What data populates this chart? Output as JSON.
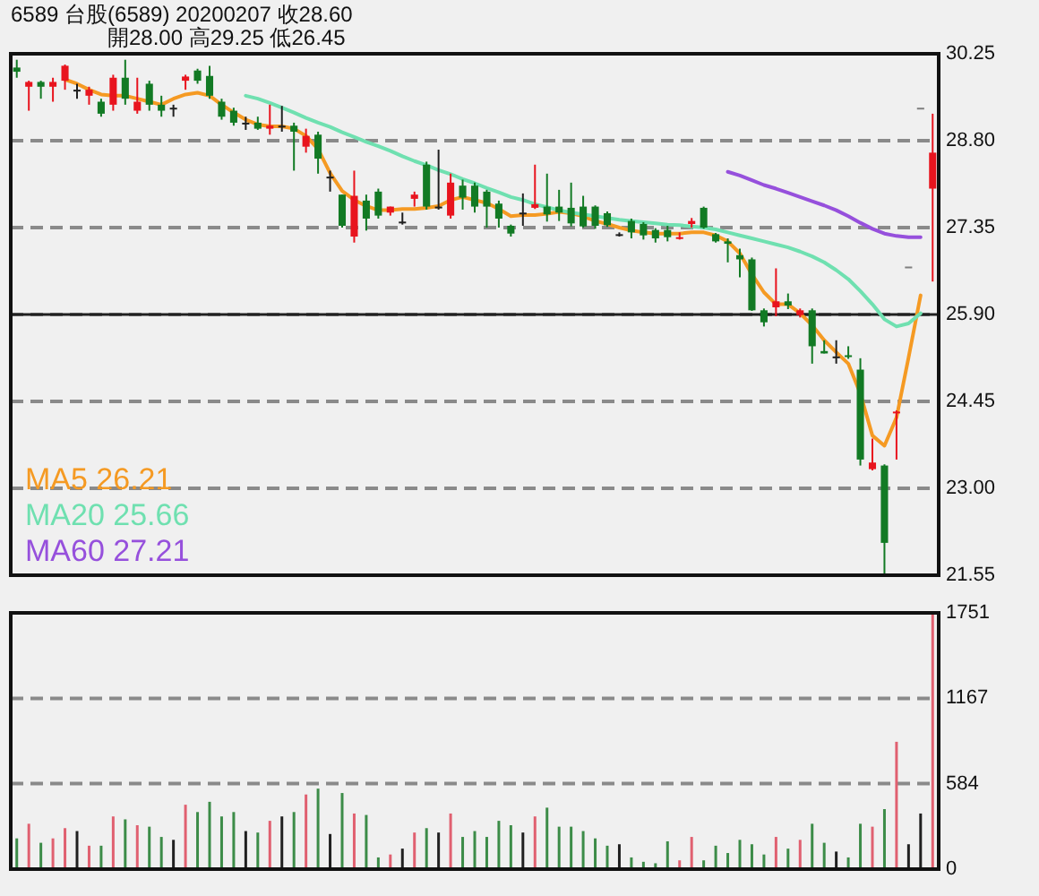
{
  "chart_data": [
    {
      "type": "candlestick",
      "title": "6589 台股(6589) 20200207 收28.60",
      "subtitle": "開28.00 高29.25 低26.45",
      "categories": [
        null,
        null,
        null,
        null,
        null,
        null,
        null,
        null,
        null,
        null,
        null,
        null,
        null,
        null,
        null,
        null,
        null,
        null,
        null,
        null,
        null,
        null,
        null,
        null,
        null,
        null,
        null,
        null,
        null,
        null,
        null,
        null,
        null,
        null,
        null,
        null,
        null,
        null,
        null,
        null,
        null,
        null,
        null,
        null,
        null,
        null,
        null,
        null,
        null,
        null,
        null,
        null,
        null,
        null,
        null,
        null,
        null,
        null,
        null,
        null,
        null,
        null,
        null,
        null,
        null,
        null,
        null,
        null,
        null,
        null,
        null,
        null,
        null,
        null,
        null,
        null,
        null
      ],
      "ohlc": [
        [
          30.02,
          30.15,
          29.85,
          29.95
        ],
        [
          29.7,
          29.8,
          29.3,
          29.78
        ],
        [
          29.78,
          29.8,
          29.5,
          29.7
        ],
        [
          29.7,
          29.85,
          29.45,
          29.78
        ],
        [
          29.8,
          30.07,
          29.65,
          30.05
        ],
        [
          29.65,
          29.75,
          29.5,
          29.65
        ],
        [
          29.55,
          29.7,
          29.4,
          29.65
        ],
        [
          29.45,
          29.5,
          29.2,
          29.25
        ],
        [
          29.4,
          29.9,
          29.3,
          29.85
        ],
        [
          29.85,
          30.15,
          29.4,
          29.5
        ],
        [
          29.3,
          29.85,
          29.25,
          29.45
        ],
        [
          29.75,
          29.8,
          29.3,
          29.4
        ],
        [
          29.4,
          29.55,
          29.2,
          29.3
        ],
        [
          29.35,
          29.4,
          29.2,
          29.35
        ],
        [
          29.8,
          29.9,
          29.65,
          29.87
        ],
        [
          29.97,
          30.0,
          29.75,
          29.8
        ],
        [
          29.88,
          30.05,
          29.5,
          29.55
        ],
        [
          29.45,
          29.5,
          29.15,
          29.2
        ],
        [
          29.3,
          29.35,
          29.05,
          29.1
        ],
        [
          29.1,
          29.2,
          28.98,
          29.1
        ],
        [
          29.1,
          29.2,
          28.98,
          29.0
        ],
        [
          29.0,
          29.4,
          28.9,
          29.05
        ],
        [
          29.05,
          29.38,
          28.95,
          29.05
        ],
        [
          29.05,
          29.1,
          28.3,
          28.95
        ],
        [
          28.7,
          29.0,
          28.6,
          28.88
        ],
        [
          28.9,
          28.95,
          28.25,
          28.5
        ],
        [
          28.2,
          28.3,
          27.95,
          28.2
        ],
        [
          27.9,
          27.9,
          27.35,
          27.38
        ],
        [
          27.2,
          28.3,
          27.1,
          27.88
        ],
        [
          27.8,
          27.9,
          27.3,
          27.5
        ],
        [
          27.95,
          28.0,
          27.5,
          27.55
        ],
        [
          27.6,
          27.7,
          27.55,
          27.7
        ],
        [
          27.45,
          27.6,
          27.4,
          27.45
        ],
        [
          27.83,
          27.95,
          27.7,
          27.9
        ],
        [
          28.4,
          28.45,
          27.65,
          27.7
        ],
        [
          27.7,
          28.65,
          27.65,
          27.7
        ],
        [
          27.55,
          28.25,
          27.5,
          28.1
        ],
        [
          28.05,
          28.15,
          27.65,
          27.85
        ],
        [
          28.05,
          28.1,
          27.6,
          27.7
        ],
        [
          27.95,
          27.98,
          27.35,
          27.7
        ],
        [
          27.75,
          27.8,
          27.35,
          27.5
        ],
        [
          27.38,
          27.4,
          27.2,
          27.25
        ],
        [
          27.6,
          27.92,
          27.38,
          27.6
        ],
        [
          27.68,
          28.4,
          27.66,
          27.74
        ],
        [
          27.7,
          28.25,
          27.45,
          27.57
        ],
        [
          27.7,
          27.98,
          27.46,
          27.6
        ],
        [
          27.68,
          28.1,
          27.37,
          27.42
        ],
        [
          27.7,
          27.88,
          27.35,
          27.37
        ],
        [
          27.7,
          27.72,
          27.33,
          27.38
        ],
        [
          27.59,
          27.62,
          27.36,
          27.39
        ],
        [
          27.24,
          27.27,
          27.2,
          27.24
        ],
        [
          27.46,
          27.5,
          27.17,
          27.27
        ],
        [
          27.41,
          27.44,
          27.15,
          27.22
        ],
        [
          27.31,
          27.34,
          27.1,
          27.17
        ],
        [
          27.31,
          27.38,
          27.12,
          27.19
        ],
        [
          27.17,
          27.27,
          27.15,
          27.19
        ],
        [
          27.41,
          27.51,
          27.35,
          27.46
        ],
        [
          27.68,
          27.7,
          27.33,
          27.35
        ],
        [
          27.24,
          27.26,
          27.1,
          27.12
        ],
        [
          27.12,
          27.17,
          26.77,
          27.08
        ],
        [
          26.89,
          27.0,
          26.52,
          26.82
        ],
        [
          26.82,
          26.85,
          25.96,
          25.97
        ],
        [
          25.97,
          26.0,
          25.7,
          25.77
        ],
        [
          26.02,
          26.67,
          25.87,
          26.12
        ],
        [
          26.12,
          26.25,
          25.99,
          26.05
        ],
        [
          25.89,
          26.0,
          25.85,
          25.97
        ],
        [
          25.97,
          26.0,
          25.08,
          25.37
        ],
        [
          25.29,
          25.47,
          25.25,
          25.25
        ],
        [
          25.2,
          25.47,
          25.08,
          25.2
        ],
        [
          25.22,
          25.37,
          25.16,
          25.19
        ],
        [
          24.98,
          25.17,
          23.38,
          23.48
        ],
        [
          23.32,
          23.83,
          23.3,
          23.43
        ],
        [
          23.38,
          23.4,
          21.55,
          22.09
        ],
        [
          24.25,
          24.3,
          23.48,
          24.28
        ],
        [
          26.7,
          26.7,
          26.7,
          26.7
        ],
        [
          29.35,
          29.35,
          29.35,
          29.35
        ],
        [
          28.0,
          29.25,
          26.45,
          28.6
        ]
      ],
      "colors": [
        "#127a24",
        "#e8141e",
        "#127a24",
        "#e8141e",
        "#e8141e",
        "#202020",
        "#e8141e",
        "#127a24",
        "#e8141e",
        "#127a24",
        "#e8141e",
        "#127a24",
        "#127a24",
        "#202020",
        "#e8141e",
        "#127a24",
        "#127a24",
        "#127a24",
        "#127a24",
        "#202020",
        "#127a24",
        "#e8141e",
        "#202020",
        "#127a24",
        "#e8141e",
        "#127a24",
        "#202020",
        "#127a24",
        "#e8141e",
        "#127a24",
        "#127a24",
        "#e8141e",
        "#202020",
        "#e8141e",
        "#127a24",
        "#202020",
        "#e8141e",
        "#127a24",
        "#127a24",
        "#127a24",
        "#127a24",
        "#127a24",
        "#202020",
        "#e8141e",
        "#127a24",
        "#127a24",
        "#127a24",
        "#127a24",
        "#127a24",
        "#127a24",
        "#202020",
        "#127a24",
        "#127a24",
        "#127a24",
        "#127a24",
        "#e8141e",
        "#e8141e",
        "#127a24",
        "#127a24",
        "#127a24",
        "#127a24",
        "#127a24",
        "#127a24",
        "#e8141e",
        "#127a24",
        "#e8141e",
        "#127a24",
        "#127a24",
        "#202020",
        "#127a24",
        "#127a24",
        "#e8141e",
        "#127a24",
        "#e8141e",
        "#808080",
        "#808080",
        "#e8141e"
      ],
      "series": [
        {
          "type": "line",
          "name": "MA5 26.21",
          "color": "#f59a23",
          "values": [
            null,
            null,
            null,
            null,
            29.82,
            29.75,
            29.65,
            29.57,
            29.55,
            29.55,
            29.5,
            29.45,
            29.4,
            29.5,
            29.57,
            29.6,
            29.55,
            29.4,
            29.27,
            29.15,
            29.07,
            29.04,
            29.04,
            29.0,
            28.88,
            28.66,
            28.26,
            27.96,
            27.81,
            27.71,
            27.64,
            27.64,
            27.66,
            27.66,
            27.68,
            27.71,
            27.81,
            27.86,
            27.81,
            27.76,
            27.66,
            27.54,
            27.56,
            27.56,
            27.58,
            27.61,
            27.59,
            27.54,
            27.46,
            27.41,
            27.35,
            27.3,
            27.27,
            27.25,
            27.25,
            27.25,
            27.27,
            27.27,
            27.22,
            27.12,
            26.92,
            26.57,
            26.27,
            26.07,
            26.07,
            25.92,
            25.72,
            25.47,
            25.27,
            25.08,
            24.58,
            23.88,
            23.71,
            24.18,
            25.18,
            26.22,
            null
          ]
        },
        {
          "type": "line",
          "name": "MA20 25.66",
          "color": "#6fe0b0",
          "values": [
            null,
            null,
            null,
            null,
            null,
            null,
            null,
            null,
            null,
            null,
            null,
            null,
            null,
            null,
            null,
            null,
            null,
            null,
            null,
            29.55,
            29.5,
            29.43,
            29.35,
            29.27,
            29.18,
            29.1,
            29.03,
            28.94,
            28.86,
            28.78,
            28.71,
            28.63,
            28.54,
            28.46,
            28.39,
            28.31,
            28.24,
            28.16,
            28.09,
            28.01,
            27.94,
            27.86,
            27.81,
            27.74,
            27.69,
            27.64,
            27.6,
            27.57,
            27.54,
            27.51,
            27.48,
            27.46,
            27.44,
            27.42,
            27.4,
            27.39,
            27.37,
            27.35,
            27.32,
            27.27,
            27.22,
            27.17,
            27.12,
            27.07,
            27.02,
            26.95,
            26.87,
            26.77,
            26.64,
            26.49,
            26.29,
            26.07,
            25.82,
            25.7,
            25.75,
            25.92,
            null
          ]
        },
        {
          "type": "line",
          "name": "MA60 27.21",
          "color": "#9650dc",
          "values": [
            null,
            null,
            null,
            null,
            null,
            null,
            null,
            null,
            null,
            null,
            null,
            null,
            null,
            null,
            null,
            null,
            null,
            null,
            null,
            null,
            null,
            null,
            null,
            null,
            null,
            null,
            null,
            null,
            null,
            null,
            null,
            null,
            null,
            null,
            null,
            null,
            null,
            null,
            null,
            null,
            null,
            null,
            null,
            null,
            null,
            null,
            null,
            null,
            null,
            null,
            null,
            null,
            null,
            null,
            null,
            null,
            null,
            null,
            null,
            28.28,
            28.22,
            28.14,
            28.06,
            28.0,
            27.93,
            27.86,
            27.79,
            27.72,
            27.64,
            27.54,
            27.43,
            27.33,
            27.25,
            27.21,
            27.19,
            27.19,
            null
          ]
        }
      ],
      "ylim": [
        21.55,
        30.25
      ],
      "yticks": [
        {
          "value": 21.55,
          "label": "21.55"
        },
        {
          "value": 23.0,
          "label": "23.00"
        },
        {
          "value": 24.45,
          "label": "24.45"
        },
        {
          "value": 25.9,
          "label": "25.90"
        },
        {
          "value": 27.35,
          "label": "27.35"
        },
        {
          "value": 28.8,
          "label": "28.80"
        },
        {
          "value": 30.25,
          "label": "30.25"
        }
      ],
      "grid": "y",
      "legend": "bottom left",
      "ref_lines": [
        {
          "axis": "y",
          "value": 25.9,
          "color": "#202020",
          "line_style": "solid"
        }
      ]
    },
    {
      "type": "bar",
      "categories": [
        null,
        null,
        null,
        null,
        null,
        null,
        null,
        null,
        null,
        null,
        null,
        null,
        null,
        null,
        null,
        null,
        null,
        null,
        null,
        null,
        null,
        null,
        null,
        null,
        null,
        null,
        null,
        null,
        null,
        null,
        null,
        null,
        null,
        null,
        null,
        null,
        null,
        null,
        null,
        null,
        null,
        null,
        null,
        null,
        null,
        null,
        null,
        null,
        null,
        null,
        null,
        null,
        null,
        null,
        null,
        null,
        null,
        null,
        null,
        null,
        null,
        null,
        null,
        null,
        null,
        null,
        null,
        null,
        null,
        null,
        null,
        null,
        null,
        null,
        null,
        null,
        null
      ],
      "values": [
        210,
        310,
        180,
        210,
        280,
        260,
        160,
        160,
        360,
        340,
        300,
        290,
        220,
        200,
        440,
        390,
        460,
        360,
        390,
        260,
        250,
        330,
        360,
        390,
        510,
        550,
        240,
        520,
        380,
        370,
        80,
        100,
        140,
        250,
        280,
        250,
        380,
        220,
        260,
        220,
        330,
        300,
        250,
        360,
        420,
        290,
        290,
        260,
        210,
        160,
        170,
        80,
        50,
        40,
        190,
        60,
        220,
        60,
        160,
        110,
        200,
        170,
        100,
        220,
        140,
        200,
        310,
        180,
        120,
        80,
        310,
        290,
        410,
        870,
        170,
        380,
        1751
      ],
      "colors": [
        "#3c8c48",
        "#e06070",
        "#3c8c48",
        "#e06070",
        "#e06070",
        "#202020",
        "#e06070",
        "#3c8c48",
        "#e06070",
        "#3c8c48",
        "#e06070",
        "#3c8c48",
        "#3c8c48",
        "#202020",
        "#e06070",
        "#3c8c48",
        "#3c8c48",
        "#3c8c48",
        "#3c8c48",
        "#202020",
        "#3c8c48",
        "#e06070",
        "#202020",
        "#3c8c48",
        "#e06070",
        "#3c8c48",
        "#202020",
        "#3c8c48",
        "#e06070",
        "#3c8c48",
        "#3c8c48",
        "#e06070",
        "#202020",
        "#e06070",
        "#3c8c48",
        "#202020",
        "#e06070",
        "#3c8c48",
        "#3c8c48",
        "#3c8c48",
        "#3c8c48",
        "#3c8c48",
        "#202020",
        "#e06070",
        "#3c8c48",
        "#3c8c48",
        "#3c8c48",
        "#3c8c48",
        "#3c8c48",
        "#3c8c48",
        "#202020",
        "#3c8c48",
        "#3c8c48",
        "#3c8c48",
        "#3c8c48",
        "#e06070",
        "#e06070",
        "#3c8c48",
        "#3c8c48",
        "#3c8c48",
        "#3c8c48",
        "#3c8c48",
        "#3c8c48",
        "#e06070",
        "#3c8c48",
        "#e06070",
        "#3c8c48",
        "#3c8c48",
        "#202020",
        "#3c8c48",
        "#3c8c48",
        "#e06070",
        "#3c8c48",
        "#e06070",
        "#202020",
        "#202020",
        "#e06070"
      ],
      "ylim": [
        0,
        1751
      ],
      "yticks": [
        0,
        584,
        1167,
        1751
      ],
      "grid": "y"
    }
  ]
}
